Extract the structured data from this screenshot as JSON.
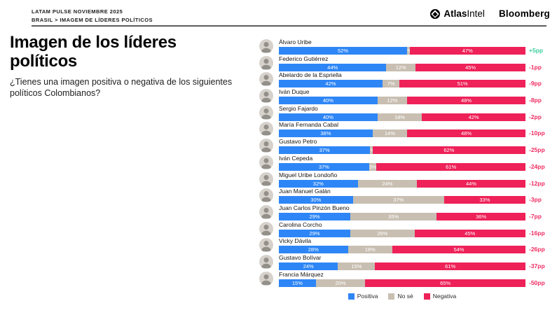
{
  "header": {
    "kicker_line1": "LATAM PULSE NOVIEMBRE 2025",
    "kicker_line2": "BRASIL > IMAGEM DE LÍDERES POLÍTICOS",
    "brand_atlas_bold": "Atlas",
    "brand_atlas_regular": "Intel",
    "brand_bloomberg": "Bloomberg"
  },
  "title": {
    "line1": "Imagen de los líderes",
    "line2": "políticos"
  },
  "subtitle": "¿Tienes una imagen positiva o negativa de los siguientes políticos Colombianos?",
  "colors": {
    "positiva": "#2e86f6",
    "no_se": "#c8bfb2",
    "negativa": "#ee2158",
    "net_positive": "#3ecf9c",
    "net_negative": "#ef2d62"
  },
  "legend": [
    {
      "label": "Positiva",
      "color": "#2e86f6"
    },
    {
      "label": "No sé",
      "color": "#c8bfb2"
    },
    {
      "label": "Negativa",
      "color": "#ee2158"
    }
  ],
  "chart_data": {
    "type": "bar",
    "orientation": "horizontal",
    "stacked": true,
    "value_unit": "%",
    "series_names": [
      "Positiva",
      "No sé",
      "Negativa"
    ],
    "net_label_unit": "pp",
    "rows": [
      {
        "name": "Álvaro Uribe",
        "positiva": 52,
        "no_se": 1,
        "negativa": 47,
        "net": "+5pp",
        "net_positive": true
      },
      {
        "name": "Federico Gutiérrez",
        "positiva": 44,
        "no_se": 12,
        "negativa": 45,
        "net": "-1pp",
        "net_positive": false
      },
      {
        "name": "Abelardo de la Espriella",
        "positiva": 42,
        "no_se": 7,
        "negativa": 51,
        "net": "-9pp",
        "net_positive": false
      },
      {
        "name": "Iván Duque",
        "positiva": 40,
        "no_se": 12,
        "negativa": 48,
        "net": "-8pp",
        "net_positive": false
      },
      {
        "name": "Sergio Fajardo",
        "positiva": 40,
        "no_se": 18,
        "negativa": 42,
        "net": "-2pp",
        "net_positive": false
      },
      {
        "name": "María Fernanda Cabal",
        "positiva": 38,
        "no_se": 14,
        "negativa": 48,
        "net": "-10pp",
        "net_positive": false
      },
      {
        "name": "Gustavo Petro",
        "positiva": 37,
        "no_se": 1,
        "negativa": 62,
        "net": "-25pp",
        "net_positive": false
      },
      {
        "name": "Iván Cepeda",
        "positiva": 37,
        "no_se": 3,
        "negativa": 61,
        "net": "-24pp",
        "net_positive": false
      },
      {
        "name": "Miguel Uribe Londoño",
        "positiva": 32,
        "no_se": 24,
        "negativa": 44,
        "net": "-12pp",
        "net_positive": false
      },
      {
        "name": "Juan Manuel Galán",
        "positiva": 30,
        "no_se": 37,
        "negativa": 33,
        "net": "-3pp",
        "net_positive": false
      },
      {
        "name": "Juan Carlos Pinzón Bueno",
        "positiva": 29,
        "no_se": 35,
        "negativa": 36,
        "net": "-7pp",
        "net_positive": false
      },
      {
        "name": "Carolina Corcho",
        "positiva": 29,
        "no_se": 26,
        "negativa": 45,
        "net": "-16pp",
        "net_positive": false
      },
      {
        "name": "Vicky Dávila",
        "positiva": 28,
        "no_se": 18,
        "negativa": 54,
        "net": "-26pp",
        "net_positive": false
      },
      {
        "name": "Gustavo Bolívar",
        "positiva": 24,
        "no_se": 15,
        "negativa": 61,
        "net": "-37pp",
        "net_positive": false
      },
      {
        "name": "Francia Márquez",
        "positiva": 15,
        "no_se": 20,
        "negativa": 65,
        "net": "-50pp",
        "net_positive": false
      }
    ]
  }
}
